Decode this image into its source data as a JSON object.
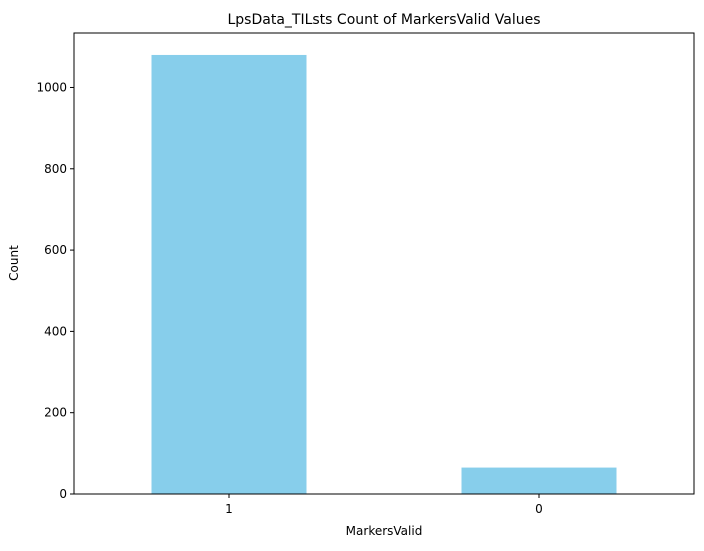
{
  "chart_data": {
    "type": "bar",
    "title": "LpsData_TILsts Count of MarkersValid Values",
    "xlabel": "MarkersValid",
    "ylabel": "Count",
    "categories": [
      "1",
      "0"
    ],
    "values": [
      1080,
      65
    ],
    "ylim": [
      0,
      1134
    ],
    "yticks": [
      0,
      200,
      400,
      600,
      800,
      1000
    ],
    "bar_color": "#87ceeb",
    "grid": false,
    "legend": "none"
  }
}
